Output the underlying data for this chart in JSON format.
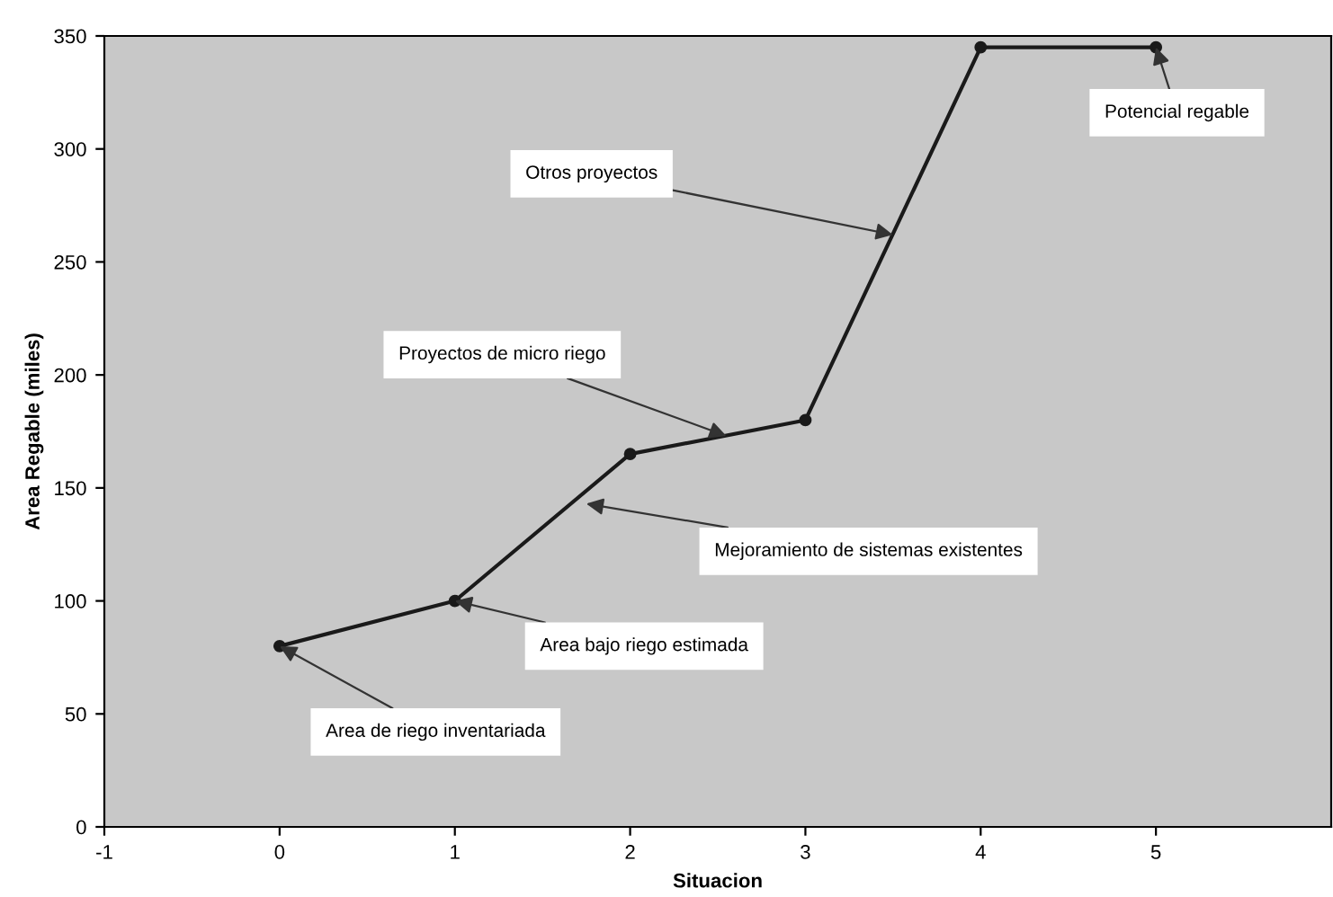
{
  "chart_data": {
    "type": "line",
    "xlabel": "Situacion",
    "ylabel": "Area Regable (miles)",
    "x": [
      0,
      1,
      2,
      3,
      4,
      5
    ],
    "series": [
      {
        "color": "#1a1a1a",
        "values": [
          80,
          100,
          165,
          180,
          345,
          345
        ]
      }
    ],
    "xlim": [
      -1,
      6
    ],
    "xticks": [
      -1,
      0,
      1,
      2,
      3,
      4,
      5
    ],
    "ylim": [
      0,
      350
    ],
    "yticks": [
      0,
      50,
      100,
      150,
      200,
      250,
      300,
      350
    ],
    "grid": false,
    "legend": false,
    "marker": "circle",
    "line_style": "solid",
    "annotations": [
      {
        "text": "Area de riego inventariada",
        "x": 0,
        "y": 80
      },
      {
        "text": "Area bajo riego estimada",
        "x": 1,
        "y": 100
      },
      {
        "text": "Mejoramiento de sistemas existentes",
        "x": 1.75,
        "y": 143
      },
      {
        "text": "Proyectos de micro riego",
        "x": 2.55,
        "y": 173
      },
      {
        "text": "Otros proyectos",
        "x": 3.5,
        "y": 262
      },
      {
        "text": "Potencial regable",
        "x": 5,
        "y": 345
      }
    ]
  }
}
